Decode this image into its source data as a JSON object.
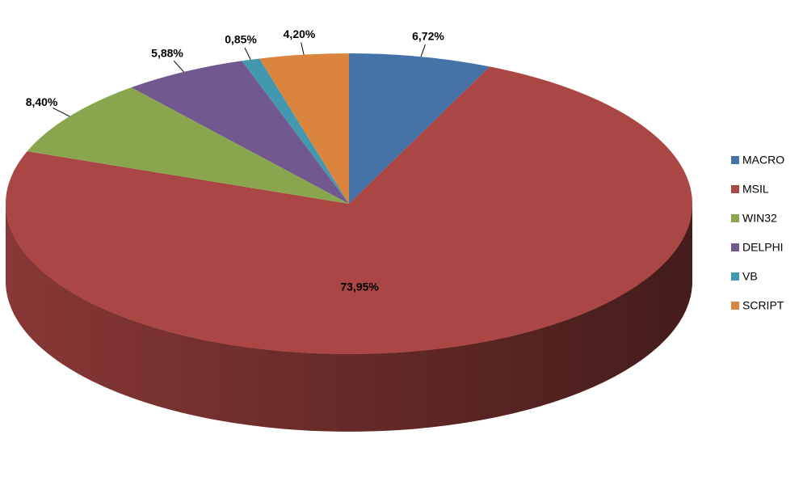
{
  "chart_data": {
    "type": "pie",
    "categories": [
      "MACRO",
      "MSIL",
      "WIN32",
      "DELPHI",
      "VB",
      "SCRIPT"
    ],
    "values": [
      6.72,
      73.95,
      8.4,
      5.88,
      0.85,
      4.2
    ],
    "value_labels": [
      "6,72%",
      "73,95%",
      "8,40%",
      "5,88%",
      "0,85%",
      "4,20%"
    ],
    "colors": [
      "#4572a7",
      "#aa4643",
      "#89a54e",
      "#71588f",
      "#4198af",
      "#db843d"
    ],
    "legend": "right"
  }
}
